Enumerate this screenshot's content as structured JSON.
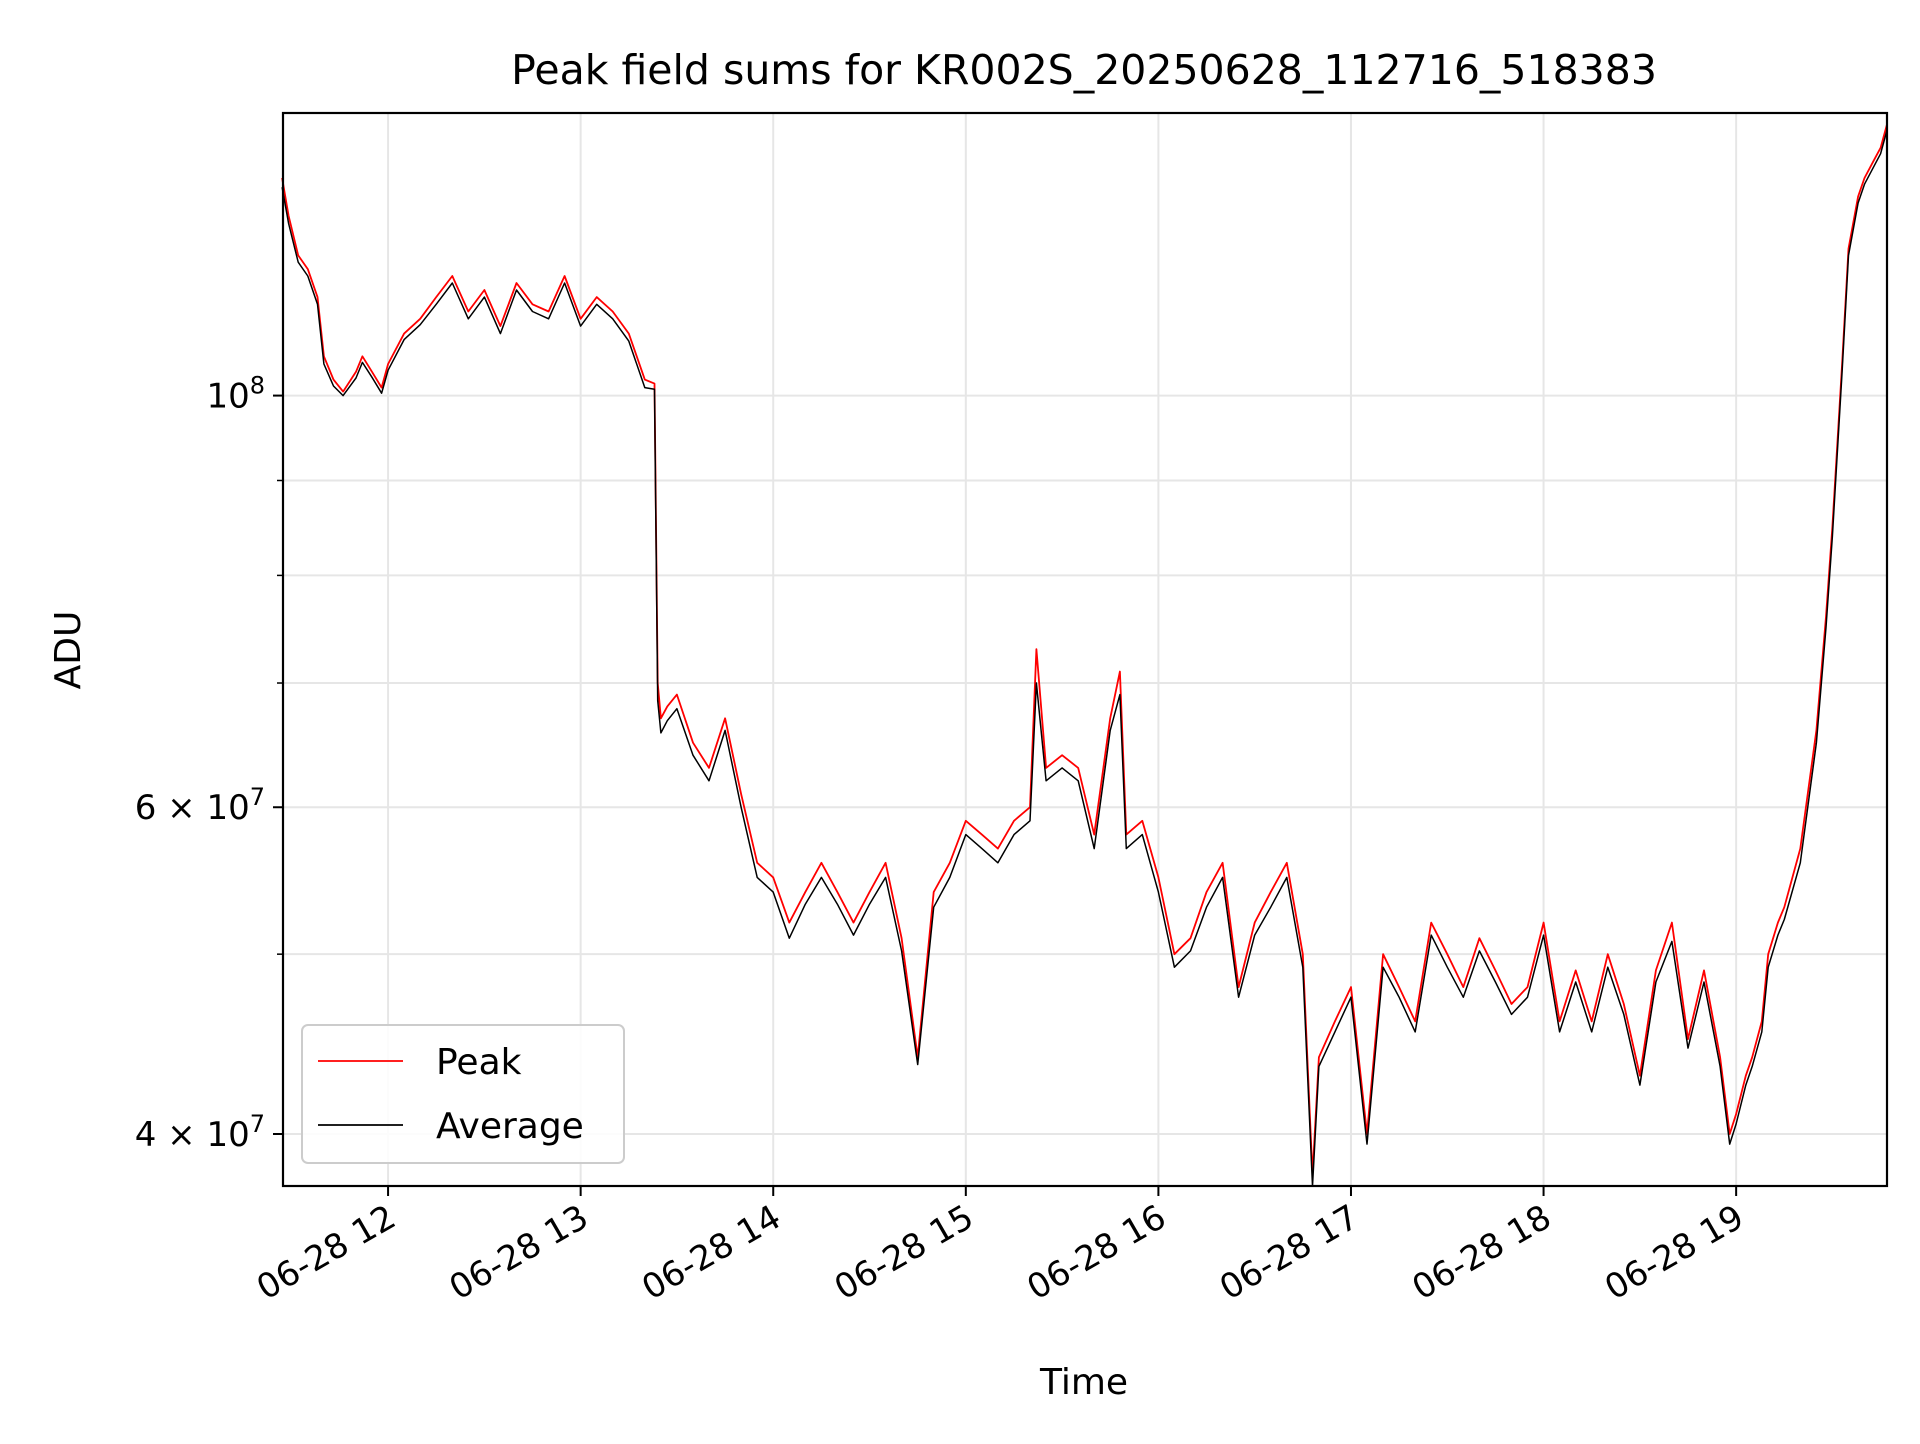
{
  "chart_data": {
    "type": "line",
    "title": "Peak field sums for KR002S_20250628_112716_518383",
    "xlabel": "Time",
    "ylabel": "ADU",
    "y_scale": "log",
    "ylim": [
      37500000,
      142000000
    ],
    "xlim": [
      "2025-06-28 11:27:16",
      "2025-06-28 19:47:00"
    ],
    "grid": true,
    "legend_position": "lower-left",
    "x_ticks": [
      {
        "label": "06-28 12",
        "time": "2025-06-28 12:00"
      },
      {
        "label": "06-28 13",
        "time": "2025-06-28 13:00"
      },
      {
        "label": "06-28 14",
        "time": "2025-06-28 14:00"
      },
      {
        "label": "06-28 15",
        "time": "2025-06-28 15:00"
      },
      {
        "label": "06-28 16",
        "time": "2025-06-28 16:00"
      },
      {
        "label": "06-28 17",
        "time": "2025-06-28 17:00"
      },
      {
        "label": "06-28 18",
        "time": "2025-06-28 18:00"
      },
      {
        "label": "06-28 19",
        "time": "2025-06-28 19:00"
      }
    ],
    "y_ticks_major": [
      {
        "value": 40000000,
        "base": "4",
        "exp": "7",
        "mantissa": true
      },
      {
        "value": 60000000,
        "base": "6",
        "exp": "7",
        "mantissa": true
      },
      {
        "value": 100000000,
        "base": "10",
        "exp": "8",
        "mantissa": false
      }
    ],
    "y_ticks_minor": [
      50000000,
      70000000,
      80000000,
      90000000
    ],
    "series": [
      {
        "name": "Peak",
        "color": "#ff0000",
        "x": [
          "11:27",
          "11:29",
          "11:32",
          "11:35",
          "11:38",
          "11:40",
          "11:43",
          "11:46",
          "11:50",
          "11:52",
          "11:55",
          "11:58",
          "12:00",
          "12:05",
          "12:10",
          "12:15",
          "12:20",
          "12:25",
          "12:30",
          "12:35",
          "12:40",
          "12:45",
          "12:50",
          "12:55",
          "13:00",
          "13:05",
          "13:10",
          "13:15",
          "13:20",
          "13:23",
          "13:24",
          "13:25",
          "13:27",
          "13:30",
          "13:35",
          "13:40",
          "13:45",
          "13:50",
          "13:55",
          "14:00",
          "14:05",
          "14:10",
          "14:15",
          "14:20",
          "14:25",
          "14:30",
          "14:35",
          "14:40",
          "14:45",
          "14:50",
          "14:55",
          "15:00",
          "15:05",
          "15:10",
          "15:15",
          "15:20",
          "15:22",
          "15:25",
          "15:30",
          "15:35",
          "15:40",
          "15:45",
          "15:48",
          "15:50",
          "15:55",
          "16:00",
          "16:05",
          "16:10",
          "16:15",
          "16:20",
          "16:25",
          "16:30",
          "16:35",
          "16:40",
          "16:45",
          "16:48",
          "16:50",
          "16:55",
          "17:00",
          "17:05",
          "17:10",
          "17:15",
          "17:20",
          "17:25",
          "17:30",
          "17:35",
          "17:40",
          "17:45",
          "17:50",
          "17:55",
          "18:00",
          "18:05",
          "18:10",
          "18:15",
          "18:20",
          "18:25",
          "18:30",
          "18:35",
          "18:40",
          "18:45",
          "18:50",
          "18:55",
          "18:58",
          "19:00",
          "19:03",
          "19:05",
          "19:08",
          "19:10",
          "19:13",
          "19:15",
          "19:20",
          "19:25",
          "19:28",
          "19:30",
          "19:33",
          "19:35",
          "19:38",
          "19:40",
          "19:43",
          "19:45",
          "19:47"
        ],
        "values": [
          131000000,
          125000000,
          119000000,
          117000000,
          113000000,
          105000000,
          102000000,
          100500000,
          103000000,
          105000000,
          103000000,
          101000000,
          104000000,
          108000000,
          110000000,
          113000000,
          116000000,
          111000000,
          114000000,
          109000000,
          115000000,
          112000000,
          111000000,
          116000000,
          110000000,
          113000000,
          111000000,
          108000000,
          102000000,
          101500000,
          70000000,
          67000000,
          68000000,
          69000000,
          65000000,
          63000000,
          67000000,
          61000000,
          56000000,
          55000000,
          52000000,
          54000000,
          56000000,
          54000000,
          52000000,
          54000000,
          56000000,
          51000000,
          44000000,
          54000000,
          56000000,
          59000000,
          58000000,
          57000000,
          59000000,
          60000000,
          73000000,
          63000000,
          64000000,
          63000000,
          58000000,
          67000000,
          71000000,
          58000000,
          59000000,
          55000000,
          50000000,
          51000000,
          54000000,
          56000000,
          48000000,
          52000000,
          54000000,
          56000000,
          50000000,
          38000000,
          44000000,
          46000000,
          48000000,
          40000000,
          50000000,
          48000000,
          46000000,
          52000000,
          50000000,
          48000000,
          51000000,
          49000000,
          47000000,
          48000000,
          52000000,
          46000000,
          49000000,
          46000000,
          50000000,
          47000000,
          43000000,
          49000000,
          52000000,
          45000000,
          49000000,
          44000000,
          40000000,
          41000000,
          43000000,
          44000000,
          46000000,
          50000000,
          52000000,
          53000000,
          57000000,
          66000000,
          76000000,
          85000000,
          104000000,
          120000000,
          128000000,
          131000000,
          134000000,
          136000000,
          140000000
        ]
      },
      {
        "name": "Average",
        "color": "#000000",
        "x": [
          "11:27",
          "11:29",
          "11:32",
          "11:35",
          "11:38",
          "11:40",
          "11:43",
          "11:46",
          "11:50",
          "11:52",
          "11:55",
          "11:58",
          "12:00",
          "12:05",
          "12:10",
          "12:15",
          "12:20",
          "12:25",
          "12:30",
          "12:35",
          "12:40",
          "12:45",
          "12:50",
          "12:55",
          "13:00",
          "13:05",
          "13:10",
          "13:15",
          "13:20",
          "13:23",
          "13:24",
          "13:25",
          "13:27",
          "13:30",
          "13:35",
          "13:40",
          "13:45",
          "13:50",
          "13:55",
          "14:00",
          "14:05",
          "14:10",
          "14:15",
          "14:20",
          "14:25",
          "14:30",
          "14:35",
          "14:40",
          "14:45",
          "14:50",
          "14:55",
          "15:00",
          "15:05",
          "15:10",
          "15:15",
          "15:20",
          "15:22",
          "15:25",
          "15:30",
          "15:35",
          "15:40",
          "15:45",
          "15:48",
          "15:50",
          "15:55",
          "16:00",
          "16:05",
          "16:10",
          "16:15",
          "16:20",
          "16:25",
          "16:30",
          "16:35",
          "16:40",
          "16:45",
          "16:48",
          "16:50",
          "16:55",
          "17:00",
          "17:05",
          "17:10",
          "17:15",
          "17:20",
          "17:25",
          "17:30",
          "17:35",
          "17:40",
          "17:45",
          "17:50",
          "17:55",
          "18:00",
          "18:05",
          "18:10",
          "18:15",
          "18:20",
          "18:25",
          "18:30",
          "18:35",
          "18:40",
          "18:45",
          "18:50",
          "18:55",
          "18:58",
          "19:00",
          "19:03",
          "19:05",
          "19:08",
          "19:10",
          "19:13",
          "19:15",
          "19:20",
          "19:25",
          "19:28",
          "19:30",
          "19:33",
          "19:35",
          "19:38",
          "19:40",
          "19:43",
          "19:45",
          "19:47"
        ],
        "values": [
          129500000,
          123800000,
          118000000,
          116000000,
          112000000,
          104000000,
          101200000,
          100000000,
          102200000,
          104200000,
          102300000,
          100300000,
          103200000,
          107200000,
          109200000,
          112000000,
          115000000,
          110000000,
          113000000,
          108000000,
          114000000,
          111000000,
          110000000,
          115000000,
          109000000,
          112000000,
          110000000,
          107000000,
          101000000,
          100800000,
          68500000,
          65800000,
          66800000,
          67800000,
          64000000,
          62000000,
          66000000,
          60000000,
          55000000,
          54000000,
          51000000,
          53200000,
          55000000,
          53200000,
          51200000,
          53200000,
          55000000,
          50200000,
          43600000,
          53000000,
          55000000,
          58000000,
          57000000,
          56000000,
          58000000,
          59000000,
          70000000,
          62000000,
          63000000,
          62000000,
          57000000,
          66000000,
          69000000,
          57000000,
          58000000,
          54000000,
          49200000,
          50200000,
          53000000,
          55000000,
          47400000,
          51200000,
          53000000,
          55000000,
          49200000,
          37500000,
          43500000,
          45400000,
          47400000,
          39500000,
          49200000,
          47400000,
          45400000,
          51200000,
          49200000,
          47400000,
          50200000,
          48300000,
          46400000,
          47400000,
          51200000,
          45400000,
          48300000,
          45400000,
          49200000,
          46400000,
          42500000,
          48300000,
          50800000,
          44500000,
          48300000,
          43500000,
          39500000,
          40500000,
          42500000,
          43500000,
          45400000,
          49200000,
          51200000,
          52200000,
          56000000,
          65000000,
          75000000,
          84000000,
          103000000,
          119000000,
          127000000,
          130000000,
          133000000,
          135000000,
          139000000
        ]
      }
    ]
  }
}
